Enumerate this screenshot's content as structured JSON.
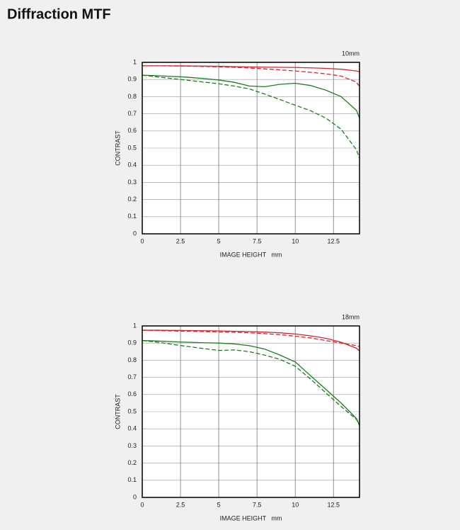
{
  "page_title": "Diffraction MTF",
  "chart_data": [
    {
      "type": "line",
      "title": "10mm",
      "xlabel": "IMAGE HEIGHT   mm",
      "ylabel": "CONTRAST",
      "x": [
        0,
        1,
        2,
        3,
        4,
        5,
        6,
        7,
        8,
        9,
        10,
        11,
        12,
        13,
        14,
        14.2
      ],
      "xlim": [
        0,
        14.2
      ],
      "xticks": [
        0,
        2.5,
        5,
        7.5,
        10,
        12.5
      ],
      "ylim": [
        0,
        1
      ],
      "yticks": [
        0,
        0.1,
        0.2,
        0.3,
        0.4,
        0.5,
        0.6,
        0.7,
        0.8,
        0.9,
        1
      ],
      "grid": true,
      "series": [
        {
          "color": "#d9232a",
          "dash": false,
          "values": [
            0.98,
            0.98,
            0.98,
            0.979,
            0.978,
            0.977,
            0.975,
            0.973,
            0.972,
            0.971,
            0.97,
            0.968,
            0.965,
            0.96,
            0.95,
            0.945
          ]
        },
        {
          "color": "#d9232a",
          "dash": true,
          "values": [
            0.98,
            0.98,
            0.979,
            0.978,
            0.976,
            0.974,
            0.971,
            0.967,
            0.962,
            0.956,
            0.95,
            0.942,
            0.933,
            0.92,
            0.885,
            0.86
          ]
        },
        {
          "color": "#1e7d1e",
          "dash": false,
          "values": [
            0.925,
            0.922,
            0.918,
            0.913,
            0.906,
            0.897,
            0.884,
            0.862,
            0.858,
            0.872,
            0.878,
            0.865,
            0.838,
            0.8,
            0.72,
            0.675
          ]
        },
        {
          "color": "#1e7d1e",
          "dash": true,
          "values": [
            0.925,
            0.915,
            0.905,
            0.895,
            0.885,
            0.875,
            0.862,
            0.845,
            0.815,
            0.783,
            0.75,
            0.718,
            0.675,
            0.61,
            0.49,
            0.44
          ]
        }
      ]
    },
    {
      "type": "line",
      "title": "18mm",
      "xlabel": "IMAGE HEIGHT   mm",
      "ylabel": "CONTRAST",
      "x": [
        0,
        1,
        2,
        3,
        4,
        5,
        6,
        7,
        8,
        9,
        10,
        11,
        12,
        13,
        14,
        14.2
      ],
      "xlim": [
        0,
        14.2
      ],
      "xticks": [
        0,
        2.5,
        5,
        7.5,
        10,
        12.5
      ],
      "ylim": [
        0,
        1
      ],
      "yticks": [
        0,
        0.1,
        0.2,
        0.3,
        0.4,
        0.5,
        0.6,
        0.7,
        0.8,
        0.9,
        1
      ],
      "grid": true,
      "series": [
        {
          "color": "#d9232a",
          "dash": false,
          "values": [
            0.975,
            0.975,
            0.974,
            0.973,
            0.972,
            0.971,
            0.969,
            0.967,
            0.964,
            0.96,
            0.953,
            0.942,
            0.928,
            0.905,
            0.87,
            0.855
          ]
        },
        {
          "color": "#d9232a",
          "dash": true,
          "values": [
            0.975,
            0.973,
            0.971,
            0.969,
            0.967,
            0.965,
            0.963,
            0.96,
            0.955,
            0.949,
            0.94,
            0.93,
            0.915,
            0.9,
            0.885,
            0.88
          ]
        },
        {
          "color": "#1e7d1e",
          "dash": false,
          "values": [
            0.915,
            0.912,
            0.908,
            0.905,
            0.902,
            0.9,
            0.895,
            0.885,
            0.865,
            0.83,
            0.79,
            0.71,
            0.63,
            0.55,
            0.46,
            0.42
          ]
        },
        {
          "color": "#1e7d1e",
          "dash": true,
          "values": [
            0.915,
            0.905,
            0.892,
            0.88,
            0.868,
            0.857,
            0.86,
            0.85,
            0.83,
            0.805,
            0.765,
            0.69,
            0.61,
            0.53,
            0.455,
            0.42
          ]
        }
      ]
    }
  ]
}
